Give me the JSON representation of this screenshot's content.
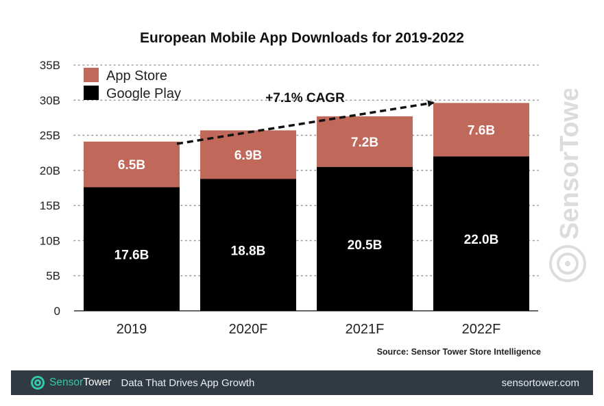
{
  "chart_data": {
    "type": "bar",
    "stacked": true,
    "title": "European Mobile App Downloads for 2019-2022",
    "categories": [
      "2019",
      "2020F",
      "2021F",
      "2022F"
    ],
    "series": [
      {
        "name": "Google Play",
        "values": [
          17.6,
          18.8,
          20.5,
          22.0
        ],
        "labels": [
          "17.6B",
          "18.8B",
          "20.5B",
          "22.0B"
        ],
        "color": "#000000"
      },
      {
        "name": "App Store",
        "values": [
          6.5,
          6.9,
          7.2,
          7.6
        ],
        "labels": [
          "6.5B",
          "6.9B",
          "7.2B",
          "7.6B"
        ],
        "color": "#c0685a"
      }
    ],
    "y_ticks": [
      "0",
      "5B",
      "10B",
      "15B",
      "20B",
      "25B",
      "30B",
      "35B"
    ],
    "ylim": [
      0,
      35
    ],
    "grid": "horizontal dotted",
    "legend": "top-left",
    "annotation": "+7.1% CAGR",
    "source": "Source: Sensor Tower Store Intelligence"
  },
  "watermark": {
    "text": "SensorTower"
  },
  "footer": {
    "brand_sensor": "Sensor",
    "brand_tower": "Tower",
    "tagline": "Data That Drives App Growth",
    "url": "sensortower.com",
    "bg_color": "#2f3a45",
    "accent_color": "#35c8a7"
  }
}
